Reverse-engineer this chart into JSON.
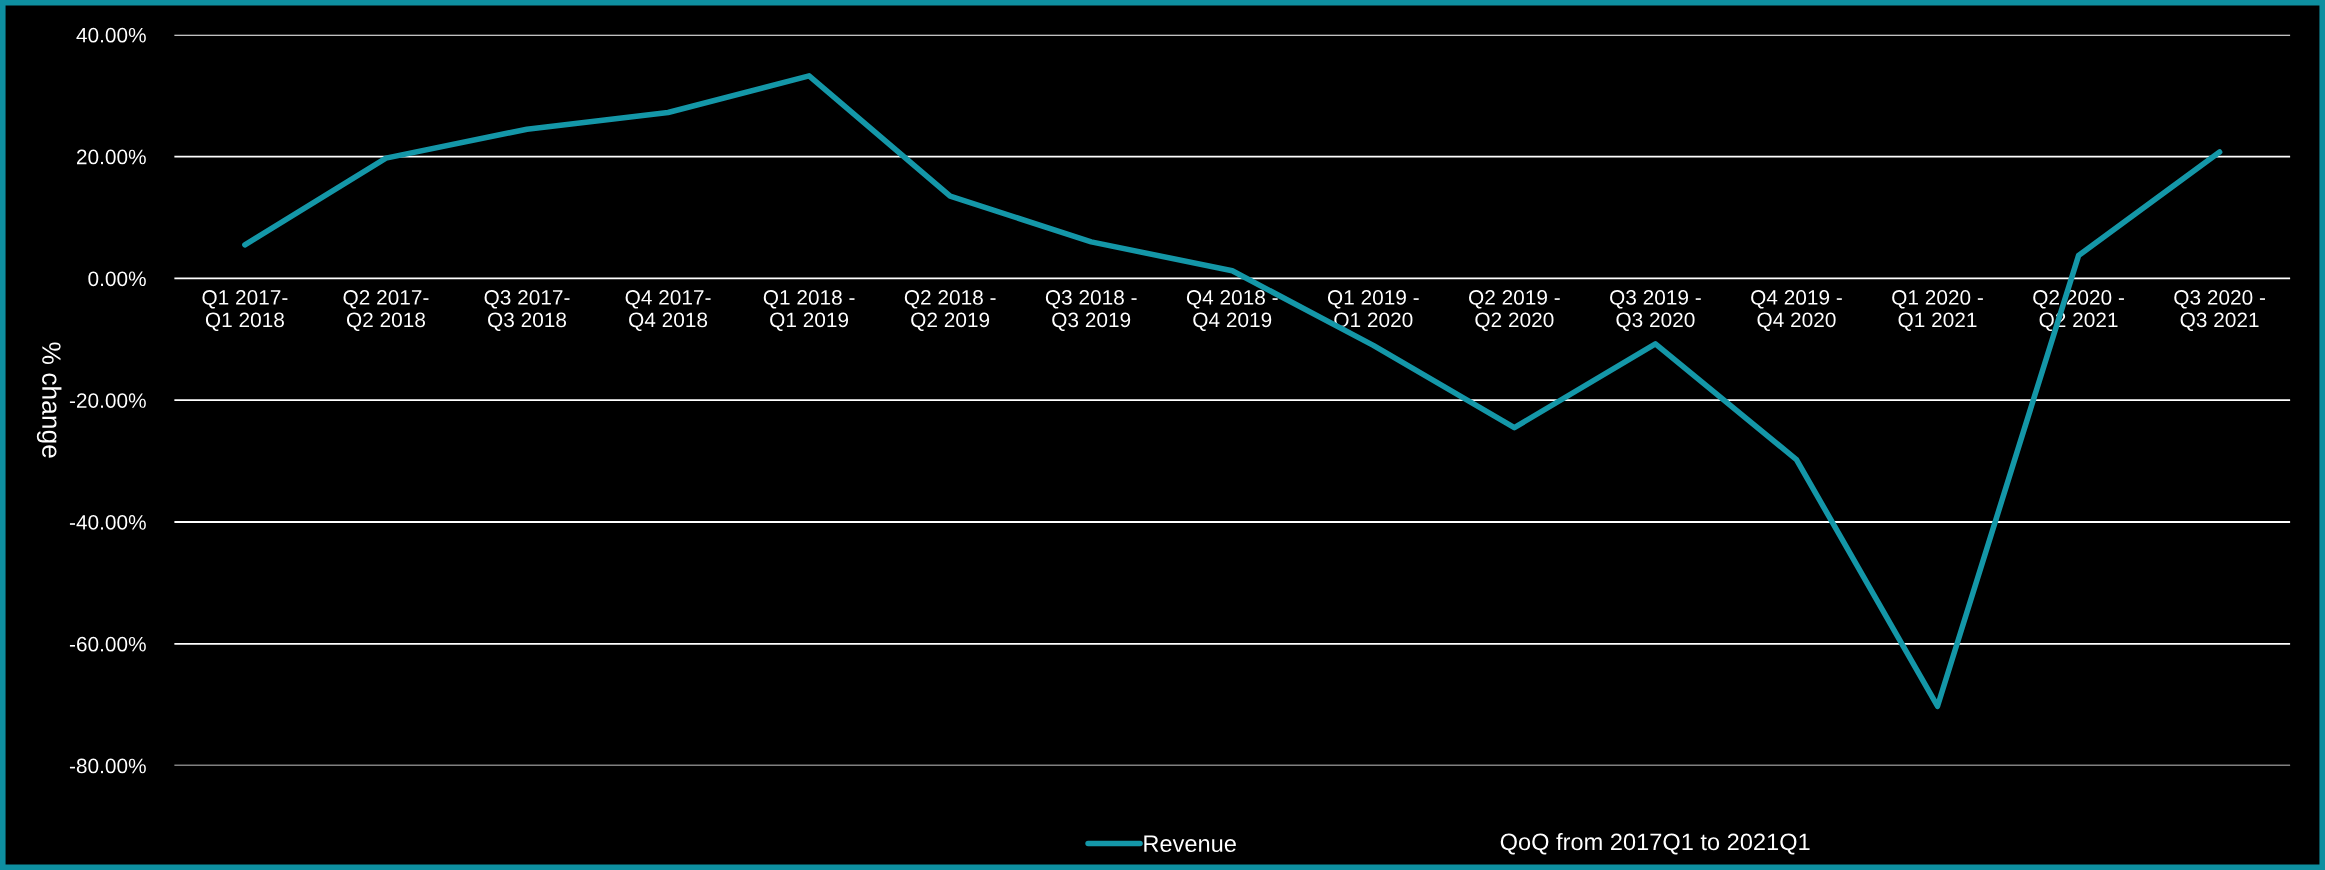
{
  "chart_data": {
    "type": "line",
    "ylabel": "% change",
    "categories": [
      "Q1 2017-\nQ1 2018",
      "Q2 2017-\nQ2 2018",
      "Q3 2017-\nQ3 2018",
      "Q4 2017-\nQ4 2018",
      "Q1 2018 -\nQ1 2019",
      "Q2 2018 -\nQ2 2019",
      "Q3 2018 -\nQ3 2019",
      "Q4 2018 -\nQ4 2019",
      "Q1 2019 -\nQ1 2020",
      "Q2 2019 -\nQ2 2020",
      "Q3 2019 -\nQ3 2020",
      "Q4 2019 -\nQ4 2020",
      "Q1 2020 -\nQ1 2021",
      "Q2 2020 -\nQ2 2021",
      "Q3 2020 -\nQ3 2021"
    ],
    "series": [
      {
        "name": "Revenue",
        "color": "#1497a8",
        "values": [
          5.5,
          19.75,
          24.5,
          27.25,
          33.25,
          13.5,
          6,
          1.25,
          -11,
          -24.5,
          -10.75,
          -29.75,
          -70.25,
          3.75,
          20.75
        ]
      }
    ],
    "ylim": [
      -80,
      40
    ],
    "yticks": [
      {
        "value": -80,
        "label": "-80.00%"
      },
      {
        "value": -60,
        "label": "-60.00%"
      },
      {
        "value": -40,
        "label": "-40.00%"
      },
      {
        "value": -20,
        "label": "-20.00%"
      },
      {
        "value": 0,
        "label": "0.00%"
      },
      {
        "value": 20,
        "label": "20.00%"
      },
      {
        "value": 40,
        "label": "40.00%"
      }
    ],
    "grid": "y",
    "legend": "bottom",
    "marker": "none",
    "line_style": "solid",
    "annotations": [
      "QoQ from 2017Q1 to 2021Q1"
    ]
  }
}
